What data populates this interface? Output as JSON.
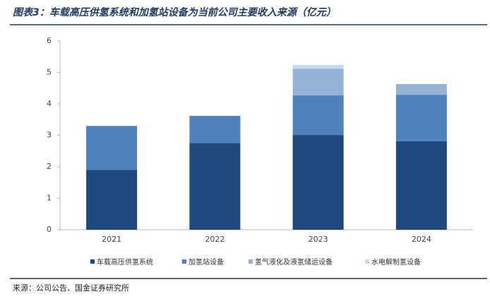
{
  "chart_data": {
    "type": "stacked_bar",
    "title": "图表3：车载高压供氢系统和加氢站设备为当前公司主要收入来源（亿元）",
    "source": "来源：公司公告、国金证券研究所",
    "categories": [
      "2021",
      "2022",
      "2023",
      "2024"
    ],
    "series": [
      {
        "name": "车载高压供氢系统",
        "color": "#1f497d",
        "values": [
          1.9,
          2.76,
          3.01,
          2.81
        ]
      },
      {
        "name": "加氢站设备",
        "color": "#4f81bd",
        "values": [
          1.4,
          0.86,
          1.26,
          1.48
        ]
      },
      {
        "name": "氢气液化及液氢储运设备",
        "color": "#95b3d7",
        "values": [
          0,
          0,
          0.85,
          0.34
        ]
      },
      {
        "name": "水电解制氢设备",
        "color": "#c6d9f1",
        "values": [
          0,
          0,
          0.12,
          0
        ]
      }
    ],
    "ylim": [
      0,
      6
    ],
    "yticks": [
      0,
      1,
      2,
      3,
      4,
      5,
      6
    ],
    "legend": "bottom"
  }
}
